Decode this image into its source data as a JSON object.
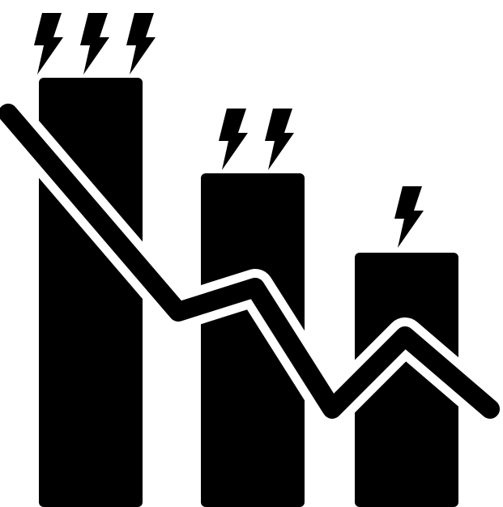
{
  "icon": {
    "name": "energy-consumption-decrease-icon",
    "foreground_color": "#000000",
    "background_color": "#ffffff",
    "bars": [
      {
        "name": "bar-high",
        "bolt_count": 3
      },
      {
        "name": "bar-medium",
        "bolt_count": 2
      },
      {
        "name": "bar-low",
        "bolt_count": 1
      }
    ],
    "trend": "decreasing"
  }
}
